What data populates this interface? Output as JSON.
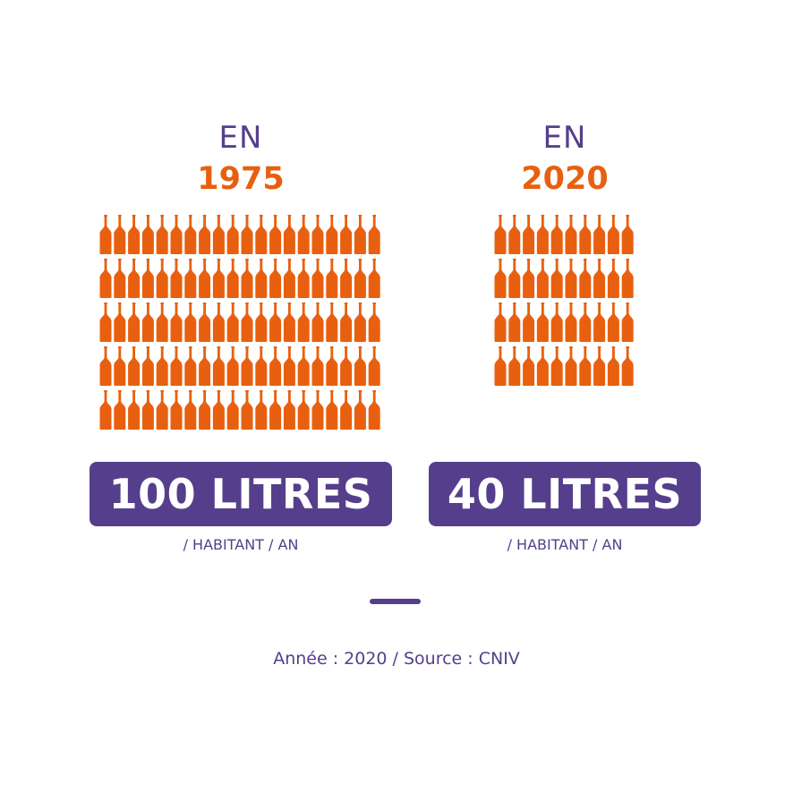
{
  "colors": {
    "accent": "#e8600f",
    "brand": "#553f8c",
    "background": "#ffffff"
  },
  "chart_data": {
    "type": "pictograph",
    "icon": "wine-bottle-icon",
    "series": [
      {
        "en": "EN",
        "year": "1975",
        "value": 100,
        "value_label": "100 LITRES",
        "unit": "/ HABITANT / AN",
        "bottles": 100,
        "columns": 20
      },
      {
        "en": "EN",
        "year": "2020",
        "value": 40,
        "value_label": "40 LITRES",
        "unit": "/ HABITANT / AN",
        "bottles": 40,
        "columns": 10
      }
    ]
  },
  "footer": {
    "source": "Année : 2020 / Source : CNIV"
  }
}
